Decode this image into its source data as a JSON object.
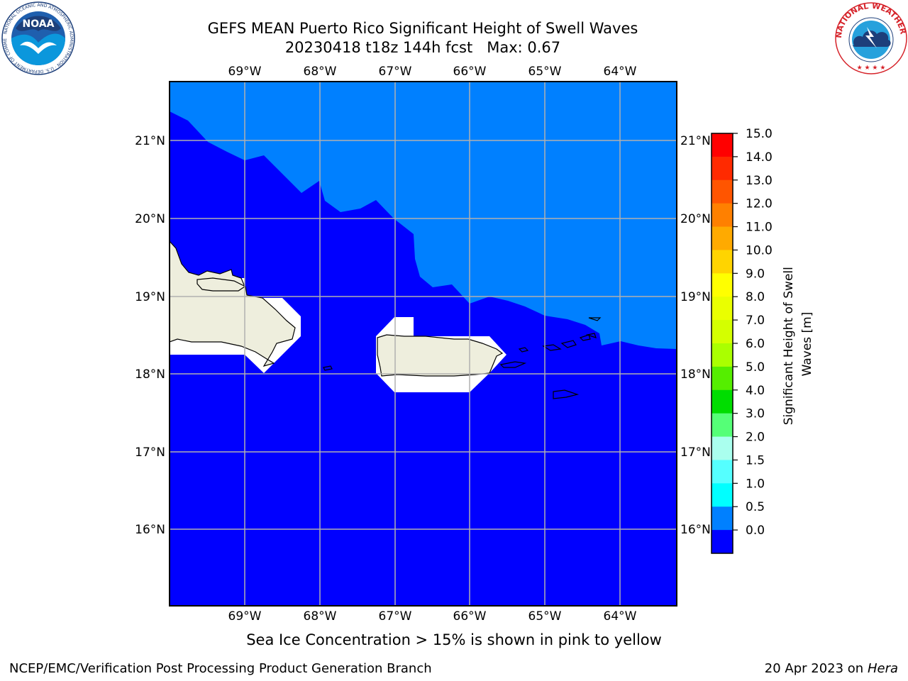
{
  "title": {
    "line1": "GEFS MEAN Puerto Rico Significant Height of Swell Waves",
    "line2": "20230418 t18z 144h fcst   Max: 0.67"
  },
  "map": {
    "lon_labels": [
      "69°W",
      "68°W",
      "67°W",
      "66°W",
      "65°W",
      "64°W"
    ],
    "lat_labels": [
      "21°N",
      "20°N",
      "19°N",
      "18°N",
      "17°N",
      "16°N"
    ],
    "lon_range": [
      -70.0,
      -63.25
    ],
    "lat_range": [
      15.0,
      21.75
    ],
    "colors": {
      "low": "#0000ff",
      "mid": "#0080ff",
      "land": "#eeeedd",
      "grid": "#b0b0b0"
    }
  },
  "colorbar": {
    "label": "Significant Height of Swell Waves [m]",
    "label_line1": "Significant Height of Swell",
    "label_line2": "Waves [m]",
    "ticks": [
      "15.0",
      "14.0",
      "13.0",
      "12.0",
      "11.0",
      "10.0",
      "9.0",
      "8.0",
      "7.0",
      "6.0",
      "5.0",
      "4.0",
      "3.0",
      "2.0",
      "1.5",
      "1.0",
      "0.5",
      "0.0"
    ],
    "colors": [
      "#ff0000",
      "#ff2a00",
      "#ff5500",
      "#ff8000",
      "#ffaa00",
      "#ffd400",
      "#ffff00",
      "#eaff00",
      "#d4ff00",
      "#aaff00",
      "#55ee00",
      "#00dd00",
      "#55ff77",
      "#aaffee",
      "#55ffff",
      "#00ffff",
      "#0080ff",
      "#0000ff"
    ]
  },
  "caption": "Sea Ice Concentration > 15% is shown in pink to yellow",
  "footer": {
    "left": "NCEP/EMC/Verification Post Processing Product Generation Branch",
    "right_prefix": "20 Apr 2023 on ",
    "right_host": "Hera"
  },
  "logos": {
    "left_text": "NOAA",
    "left_ring": "NATIONAL OCEANIC AND ATMOSPHERIC ADMINISTRATION · U.S. DEPARTMENT OF COMMERCE",
    "right_ring": "NATIONAL WEATHER SERVICE"
  }
}
